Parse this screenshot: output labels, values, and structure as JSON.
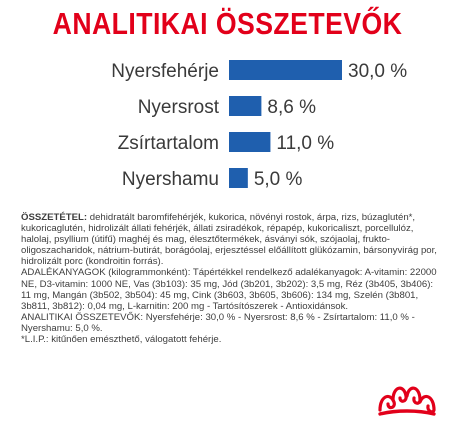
{
  "page": {
    "title": "ANALITIKAI ÖSSZETEVŐK",
    "accent_color": "#e2001a",
    "bar_color": "#1f5fae",
    "logo_icon": "royal-canin-crown-logo"
  },
  "chart_data": {
    "type": "bar",
    "orientation": "horizontal",
    "title": "ANALITIKAI ÖSSZETEVŐK",
    "categories": [
      "Nyersfehérje",
      "Nyersrost",
      "Zsírtartalom",
      "Nyershamu"
    ],
    "values": [
      30.0,
      8.6,
      11.0,
      5.0
    ],
    "value_labels": [
      "30,0 %",
      "8,6 %",
      "11,0 %",
      "5,0 %"
    ],
    "xlim": [
      0,
      30
    ],
    "grid": false,
    "legend": "none"
  },
  "composition": {
    "heading": "ÖSSZETÉTEL:",
    "text": " dehidratált baromfifehérjék, kukorica, növényi rostok, árpa, rizs, búzaglutén*, kukoricaglutén, hidrolizált állati fehérjék, állati zsiradékok, répapép, kukoricaliszt, porcellulóz, halolaj, psyllium (útifű) maghéj és mag, élesztőtermékek, ásványi sók, szójaolaj, frukto-oligoszacharidok, nátrium-butirát, borágóolaj, erjesztéssel előállított glükózamin, bársonyvirág por, hidrolizált porc (kondroitin forrás).",
    "additives": "ADALÉKANYAGOK (kilogrammonként): Tápértékkel rendelkező adalékanyagok: A-vitamin: 22000 NE, D3-vitamin: 1000 NE, Vas (3b103): 35 mg, Jód (3b201, 3b202): 3,5 mg, Réz (3b405, 3b406): 11 mg, Mangán (3b502, 3b504): 45 mg, Cink (3b603, 3b605, 3b606): 134 mg, Szelén (3b801, 3b811, 3b812): 0,04 mg, L-karnitin: 200 mg - Tartósítószerek - Antioxidánsok.",
    "analytical": "ANALITIKAI ÖSSZETEVŐK: Nyersfehérje: 30,0 % - Nyersrost: 8,6 % - Zsírtartalom: 11,0 % - Nyershamu: 5,0 %.",
    "footnote": "*L.I.P.: kitűnően emészthető, válogatott fehérje."
  }
}
